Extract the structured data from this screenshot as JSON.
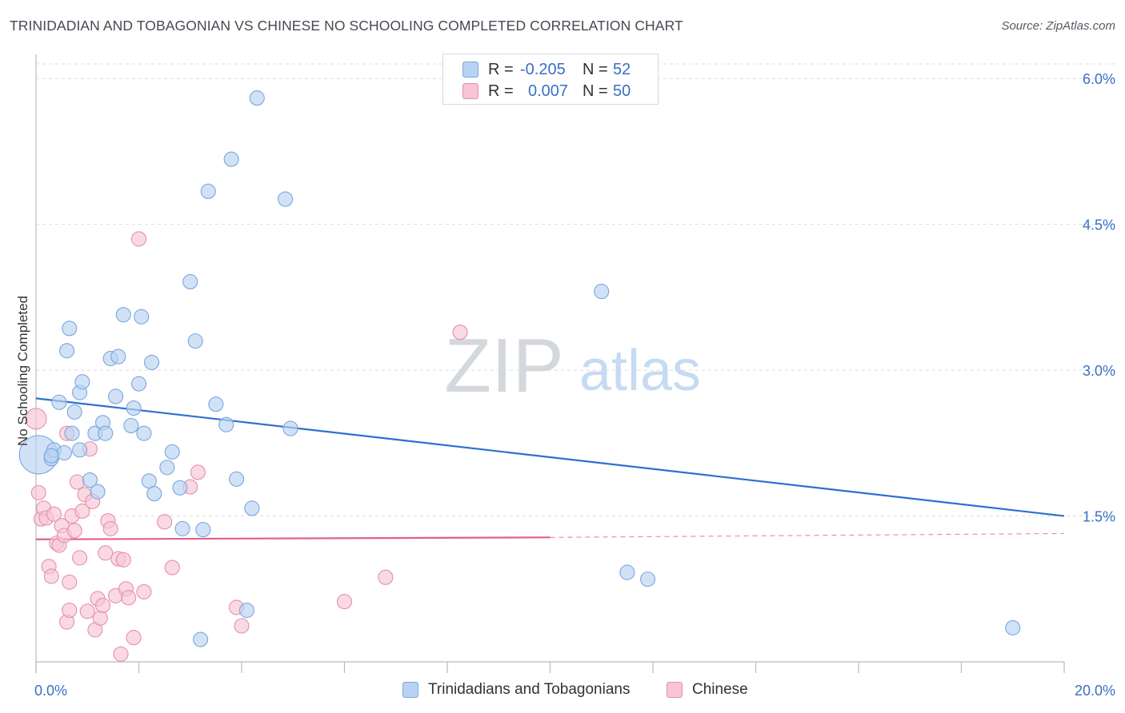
{
  "title": "TRINIDADIAN AND TOBAGONIAN VS CHINESE NO SCHOOLING COMPLETED CORRELATION CHART",
  "source": "Source: ZipAtlas.com",
  "watermark": {
    "zip": "ZIP",
    "atlas": "atlas"
  },
  "legend": {
    "rows": [
      {
        "r_label": "R =",
        "r_value": "-0.205",
        "n_label": "N =",
        "n_value": "52"
      },
      {
        "r_label": "R =",
        "r_value": "0.007",
        "n_label": "N =",
        "n_value": "50"
      }
    ]
  },
  "bottom_legend": [
    "Trinidadians and Tobagonians",
    "Chinese"
  ],
  "colors": {
    "blue_fill": "#b8d3f2",
    "blue_stroke": "#7aa6dd",
    "blue_line": "#2f6fd0",
    "pink_fill": "#f7c5d5",
    "pink_stroke": "#e58fab",
    "pink_line": "#e0608c",
    "tick_label": "#3a6fc4",
    "grid": "#dddddd"
  },
  "chart_data": {
    "type": "scatter",
    "title": "TRINIDADIAN AND TOBAGONIAN VS CHINESE NO SCHOOLING COMPLETED CORRELATION CHART",
    "xlabel": "",
    "ylabel": "No Schooling Completed",
    "xlim": [
      0,
      20
    ],
    "ylim": [
      0,
      6.15
    ],
    "x_tick_labels": [
      "0.0%",
      "20.0%"
    ],
    "y_ticks": [
      1.5,
      3.0,
      4.5,
      6.0
    ],
    "y_tick_labels": [
      "1.5%",
      "3.0%",
      "4.5%",
      "6.0%"
    ],
    "grid": true,
    "legend_position": "top-center",
    "series": [
      {
        "name": "Trinidadians and Tobagonians",
        "color": "#7aa6dd",
        "trend": {
          "x": [
            0,
            20
          ],
          "y": [
            2.71,
            1.5
          ],
          "style": "solid"
        },
        "points": [
          [
            0.05,
            2.13,
            24
          ],
          [
            0.3,
            2.09,
            9
          ],
          [
            0.35,
            2.18,
            9
          ],
          [
            0.55,
            2.15,
            9
          ],
          [
            0.3,
            2.12,
            9
          ],
          [
            0.45,
            2.67,
            9
          ],
          [
            0.7,
            2.35,
            9
          ],
          [
            0.85,
            2.18,
            9
          ],
          [
            0.75,
            2.57,
            9
          ],
          [
            0.85,
            2.77,
            9
          ],
          [
            0.9,
            2.88,
            9
          ],
          [
            0.6,
            3.2,
            9
          ],
          [
            0.65,
            3.43,
            9
          ],
          [
            1.05,
            1.87,
            9
          ],
          [
            1.15,
            2.35,
            9
          ],
          [
            1.2,
            1.75,
            9
          ],
          [
            1.3,
            2.46,
            9
          ],
          [
            1.35,
            2.35,
            9
          ],
          [
            1.45,
            3.12,
            9
          ],
          [
            1.55,
            2.73,
            9
          ],
          [
            1.6,
            3.14,
            9
          ],
          [
            1.7,
            3.57,
            9
          ],
          [
            1.85,
            2.43,
            9
          ],
          [
            1.9,
            2.61,
            9
          ],
          [
            2.0,
            2.86,
            9
          ],
          [
            2.05,
            3.55,
            9
          ],
          [
            2.1,
            2.35,
            9
          ],
          [
            2.2,
            1.86,
            9
          ],
          [
            2.25,
            3.08,
            9
          ],
          [
            2.3,
            1.73,
            9
          ],
          [
            2.55,
            2.0,
            9
          ],
          [
            2.65,
            2.16,
            9
          ],
          [
            2.8,
            1.79,
            9
          ],
          [
            2.85,
            1.37,
            9
          ],
          [
            3.0,
            3.91,
            9
          ],
          [
            3.1,
            3.3,
            9
          ],
          [
            3.2,
            0.23,
            9
          ],
          [
            3.25,
            1.36,
            9
          ],
          [
            3.35,
            4.84,
            9
          ],
          [
            3.5,
            2.65,
            9
          ],
          [
            3.7,
            2.44,
            9
          ],
          [
            3.8,
            5.17,
            9
          ],
          [
            3.9,
            1.88,
            9
          ],
          [
            4.1,
            0.53,
            9
          ],
          [
            4.2,
            1.58,
            9
          ],
          [
            4.3,
            5.8,
            9
          ],
          [
            4.85,
            4.76,
            9
          ],
          [
            4.95,
            2.4,
            9
          ],
          [
            11.0,
            3.81,
            9
          ],
          [
            11.5,
            0.92,
            9
          ],
          [
            11.9,
            0.85,
            9
          ],
          [
            19.0,
            0.35,
            9
          ]
        ]
      },
      {
        "name": "Chinese",
        "color": "#e58fab",
        "trend": {
          "x": [
            0,
            10
          ],
          "y": [
            1.26,
            1.28
          ],
          "style": "solid",
          "extension_to": [
            20,
            1.32
          ]
        },
        "points": [
          [
            0.0,
            2.5,
            13
          ],
          [
            0.05,
            1.74,
            9
          ],
          [
            0.1,
            1.47,
            9
          ],
          [
            0.15,
            1.58,
            9
          ],
          [
            0.2,
            1.48,
            9
          ],
          [
            0.25,
            0.98,
            9
          ],
          [
            0.3,
            0.88,
            9
          ],
          [
            0.35,
            1.52,
            9
          ],
          [
            0.4,
            1.22,
            9
          ],
          [
            0.45,
            1.2,
            9
          ],
          [
            0.5,
            1.4,
            9
          ],
          [
            0.55,
            1.3,
            9
          ],
          [
            0.6,
            0.41,
            9
          ],
          [
            0.65,
            0.53,
            9
          ],
          [
            0.7,
            1.5,
            9
          ],
          [
            0.75,
            1.35,
            9
          ],
          [
            0.8,
            1.85,
            9
          ],
          [
            0.85,
            1.07,
            9
          ],
          [
            0.9,
            1.55,
            9
          ],
          [
            0.95,
            1.72,
            9
          ],
          [
            1.0,
            0.52,
            9
          ],
          [
            1.05,
            2.19,
            9
          ],
          [
            1.1,
            1.65,
            9
          ],
          [
            1.15,
            0.33,
            9
          ],
          [
            1.2,
            0.65,
            9
          ],
          [
            1.25,
            0.45,
            9
          ],
          [
            1.3,
            0.58,
            9
          ],
          [
            1.35,
            1.12,
            9
          ],
          [
            1.4,
            1.45,
            9
          ],
          [
            1.45,
            1.37,
            9
          ],
          [
            1.55,
            0.68,
            9
          ],
          [
            1.6,
            1.06,
            9
          ],
          [
            1.65,
            0.08,
            9
          ],
          [
            1.7,
            1.05,
            9
          ],
          [
            1.75,
            0.75,
            9
          ],
          [
            1.8,
            0.66,
            9
          ],
          [
            1.9,
            0.25,
            9
          ],
          [
            2.1,
            0.72,
            9
          ],
          [
            2.0,
            4.35,
            9
          ],
          [
            2.5,
            1.44,
            9
          ],
          [
            2.65,
            0.97,
            9
          ],
          [
            3.0,
            1.8,
            9
          ],
          [
            3.15,
            1.95,
            9
          ],
          [
            3.9,
            0.56,
            9
          ],
          [
            4.0,
            0.37,
            9
          ],
          [
            6.0,
            0.62,
            9
          ],
          [
            6.8,
            0.87,
            9
          ],
          [
            8.25,
            3.39,
            9
          ],
          [
            0.6,
            2.35,
            9
          ],
          [
            0.65,
            0.82,
            9
          ]
        ]
      }
    ]
  }
}
